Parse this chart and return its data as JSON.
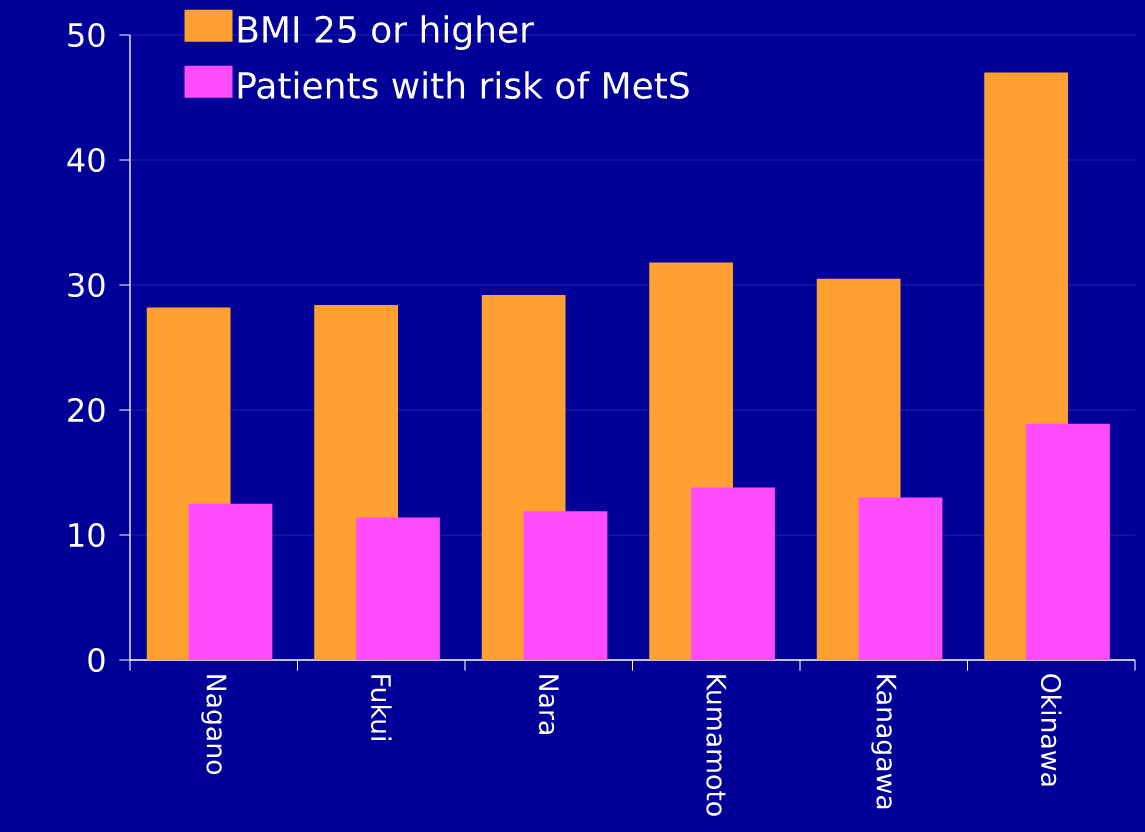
{
  "chart_data": {
    "type": "bar",
    "categories": [
      "Nagano",
      "Fukui",
      "Nara",
      "Kumamoto",
      "Kanagawa",
      "Okinawa"
    ],
    "series": [
      {
        "name": "BMI 25 or higher",
        "color": "#ffa030",
        "values": [
          28.2,
          28.4,
          29.2,
          31.8,
          30.5,
          47.0
        ]
      },
      {
        "name": "Patients with risk of MetS",
        "color": "#ff4cff",
        "values": [
          12.5,
          11.4,
          11.9,
          13.8,
          13.0,
          18.9
        ]
      }
    ],
    "ylim": [
      0,
      50
    ],
    "yticks": [
      0,
      10,
      20,
      30,
      40,
      50
    ],
    "grid": "y",
    "legend": "top left"
  }
}
